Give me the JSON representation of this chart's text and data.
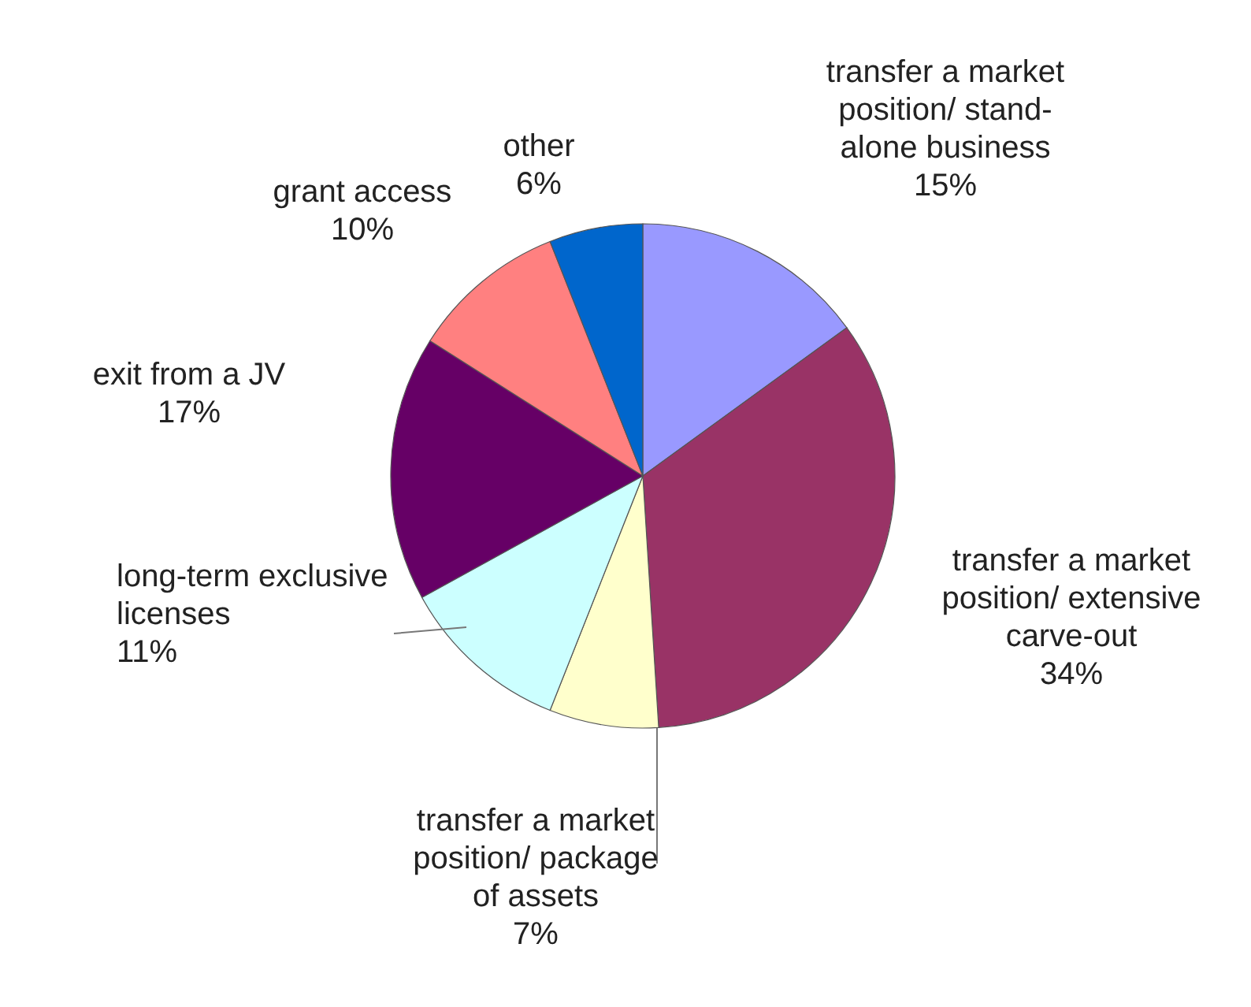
{
  "chart_data": {
    "type": "pie",
    "categories": [
      "transfer a market position/ stand-alone business",
      "transfer a market position/ extensive carve-out",
      "transfer a market position/ package of assets",
      "long-term exclusive licenses",
      "exit from a JV",
      "grant access",
      "other"
    ],
    "values": [
      15,
      34,
      7,
      11,
      17,
      10,
      6
    ],
    "value_labels": [
      "15%",
      "34%",
      "7%",
      "11%",
      "17%",
      "10%",
      "6%"
    ],
    "colors": [
      "#9999ff",
      "#993366",
      "#ffffcc",
      "#ccffff",
      "#660066",
      "#ff8080",
      "#0066cc"
    ]
  }
}
